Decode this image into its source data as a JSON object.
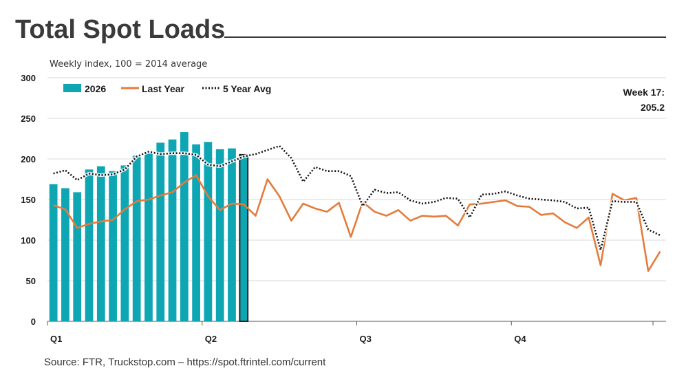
{
  "chart_data": {
    "type": "bar",
    "title": "Total Spot Loads",
    "subtitle": "Weekly index, 100 = 2014 average",
    "source": "Source: FTR, Truckstop.com – https://spot.ftrintel.com/current",
    "annotation": [
      "Week 17:",
      "205.2"
    ],
    "ylim": [
      0,
      300
    ],
    "y_ticks": [
      0,
      50,
      100,
      150,
      200,
      250,
      300
    ],
    "x_ticks": [
      {
        "label": "Q1",
        "week": 1
      },
      {
        "label": "Q2",
        "week": 14
      },
      {
        "label": "Q3",
        "week": 27
      },
      {
        "label": "Q4",
        "week": 40
      }
    ],
    "weeks_total": 52,
    "grid": true,
    "legend_position": "top-left",
    "highlight_week": 17,
    "series": [
      {
        "name": "2026",
        "type": "bar",
        "color": "#0fa6b4",
        "values": [
          169,
          164,
          159,
          187,
          191,
          185,
          192,
          204,
          208,
          220,
          224,
          233,
          218,
          221,
          212,
          213,
          205.2
        ]
      },
      {
        "name": "Last Year",
        "type": "line",
        "color": "#e57b3a",
        "values": [
          143,
          138,
          115,
          120,
          123,
          125,
          138,
          148,
          150,
          155,
          159,
          171,
          180,
          154,
          137,
          145,
          144,
          130,
          175,
          154,
          124,
          145,
          139,
          135,
          146,
          104,
          147,
          135,
          130,
          137,
          124,
          130,
          129,
          130,
          118,
          144,
          145,
          147,
          149,
          142,
          141,
          131,
          133,
          122,
          115,
          128,
          69,
          157,
          149,
          152,
          62,
          86
        ]
      },
      {
        "name": "5 Year Avg",
        "type": "line",
        "color": "#111111",
        "dotted": true,
        "values": [
          182,
          186,
          174,
          182,
          180,
          181,
          187,
          203,
          209,
          206,
          207,
          207,
          205,
          193,
          191,
          197,
          203,
          206,
          211,
          216,
          201,
          172,
          190,
          185,
          185,
          179,
          142,
          162,
          158,
          159,
          149,
          145,
          147,
          152,
          151,
          128,
          156,
          157,
          160,
          155,
          151,
          150,
          149,
          147,
          139,
          140,
          88,
          148,
          147,
          147,
          113,
          106
        ]
      }
    ]
  }
}
